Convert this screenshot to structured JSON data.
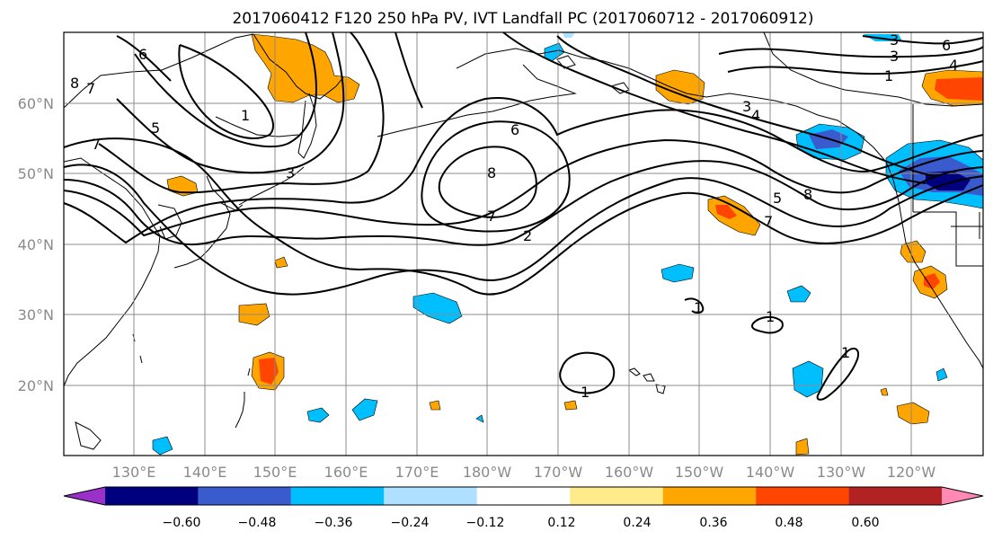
{
  "title": "2017060412 F120 250 hPa PV, IVT Landfall PC (2017060712 - 2017060912)",
  "map": {
    "lat_labels": [
      "60°N",
      "50°N",
      "40°N",
      "30°N",
      "20°N"
    ],
    "lon_labels": [
      "130°E",
      "140°E",
      "150°E",
      "160°E",
      "170°E",
      "180°W",
      "170°W",
      "160°W",
      "150°W",
      "140°W",
      "130°W",
      "120°W"
    ],
    "grid": true
  },
  "contour_labels": [
    "8",
    "7",
    "6",
    "5",
    "7",
    "1",
    "3",
    "6",
    "8",
    "7",
    "2",
    "4",
    "3",
    "8",
    "5",
    "7",
    "6",
    "3",
    "4",
    "1",
    "1",
    "1",
    "1",
    "1",
    "3"
  ],
  "colorbar": {
    "ticks": [
      "−0.60",
      "−0.48",
      "−0.36",
      "−0.24",
      "−0.12",
      "0.12",
      "0.24",
      "0.36",
      "0.48",
      "0.60"
    ],
    "colors": [
      "#9b30c8",
      "#00007f",
      "#3a5bcd",
      "#00bfff",
      "#b0e0ff",
      "#ffffff",
      "#ffeb8a",
      "#ffa500",
      "#ff4500",
      "#b22222",
      "#ff88b4"
    ]
  }
}
